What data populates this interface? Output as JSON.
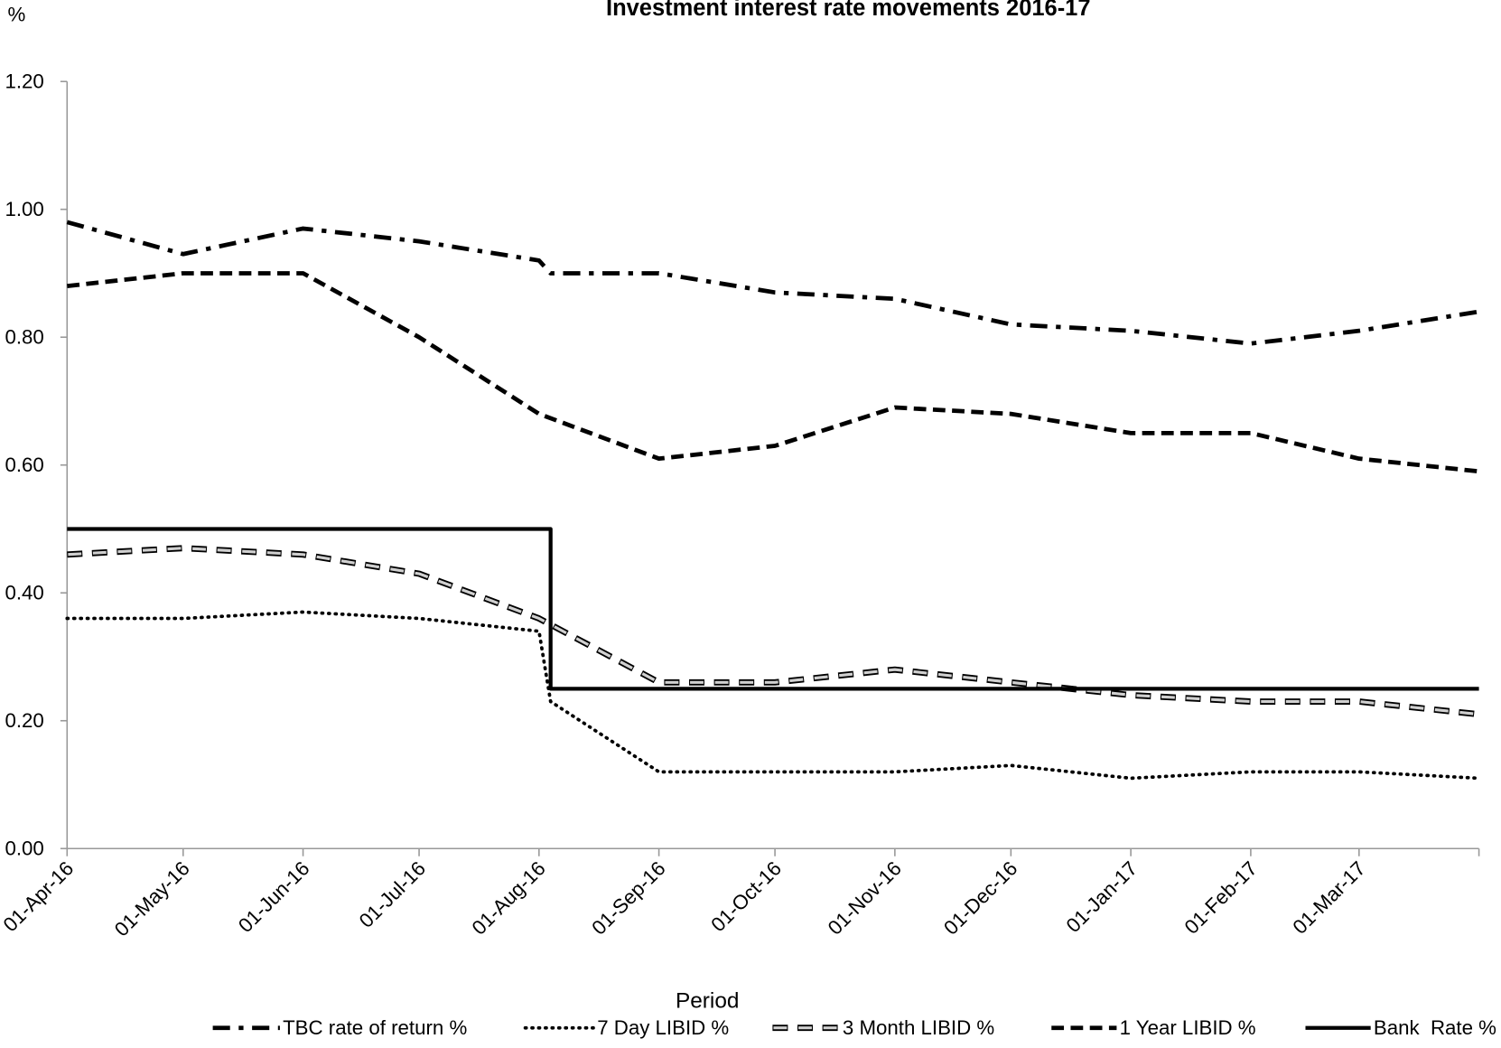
{
  "chart_data": {
    "type": "line",
    "title": "Investment interest rate movements 2016-17",
    "y_label": "%",
    "x_label": "Period",
    "xlim": [
      "2016-04-01",
      "2017-04-01"
    ],
    "xticks": [
      {
        "value": "2016-04-01",
        "label": "01-Apr-16"
      },
      {
        "value": "2016-05-01",
        "label": "01-May-16"
      },
      {
        "value": "2016-06-01",
        "label": "01-Jun-16"
      },
      {
        "value": "2016-07-01",
        "label": "01-Jul-16"
      },
      {
        "value": "2016-08-01",
        "label": "01-Aug-16"
      },
      {
        "value": "2016-09-01",
        "label": "01-Sep-16"
      },
      {
        "value": "2016-10-01",
        "label": "01-Oct-16"
      },
      {
        "value": "2016-11-01",
        "label": "01-Nov-16"
      },
      {
        "value": "2016-12-01",
        "label": "01-Dec-16"
      },
      {
        "value": "2017-01-01",
        "label": "01-Jan-17"
      },
      {
        "value": "2017-02-01",
        "label": "01-Feb-17"
      },
      {
        "value": "2017-03-01",
        "label": "01-Mar-17"
      }
    ],
    "ylim": [
      0,
      1.2
    ],
    "yticks": [
      {
        "value": 0,
        "label": "0.00"
      },
      {
        "value": 0.2,
        "label": "0.20"
      },
      {
        "value": 0.4,
        "label": "0.40"
      },
      {
        "value": 0.6,
        "label": "0.60"
      },
      {
        "value": 0.8,
        "label": "0.80"
      },
      {
        "value": 1,
        "label": "1.00"
      },
      {
        "value": 1.2,
        "label": "1.20"
      }
    ],
    "grid": false,
    "legend": "bottom",
    "series": [
      {
        "name": "TBC rate of return %",
        "color": "#000000",
        "style": "dash-dot",
        "x": [
          "2016-04-01",
          "2016-05-01",
          "2016-06-01",
          "2016-07-01",
          "2016-08-01",
          "2016-08-04",
          "2016-09-01",
          "2016-10-01",
          "2016-11-01",
          "2016-12-01",
          "2017-01-01",
          "2017-02-01",
          "2017-03-01",
          "2017-04-01"
        ],
        "values": [
          0.98,
          0.93,
          0.97,
          0.95,
          0.92,
          0.9,
          0.9,
          0.87,
          0.86,
          0.82,
          0.81,
          0.79,
          0.81,
          0.84
        ]
      },
      {
        "name": "7 Day LIBID %",
        "color": "#000000",
        "style": "dotted",
        "x": [
          "2016-04-01",
          "2016-05-01",
          "2016-06-01",
          "2016-07-01",
          "2016-08-01",
          "2016-08-04",
          "2016-09-01",
          "2016-10-01",
          "2016-11-01",
          "2016-12-01",
          "2017-01-01",
          "2017-02-01",
          "2017-03-01",
          "2017-04-01"
        ],
        "values": [
          0.36,
          0.36,
          0.37,
          0.36,
          0.34,
          0.23,
          0.12,
          0.12,
          0.12,
          0.13,
          0.11,
          0.12,
          0.12,
          0.11
        ]
      },
      {
        "name": "3 Month LIBID %",
        "color": "#d0d0d0",
        "style": "outlined-dash",
        "x": [
          "2016-04-01",
          "2016-05-01",
          "2016-06-01",
          "2016-07-01",
          "2016-08-01",
          "2016-09-01",
          "2016-10-01",
          "2016-11-01",
          "2016-12-01",
          "2017-01-01",
          "2017-02-01",
          "2017-03-01",
          "2017-04-01"
        ],
        "values": [
          0.46,
          0.47,
          0.46,
          0.43,
          0.36,
          0.26,
          0.26,
          0.28,
          0.26,
          0.24,
          0.23,
          0.23,
          0.21
        ]
      },
      {
        "name": "1 Year LIBID %",
        "color": "#000000",
        "style": "dashed",
        "x": [
          "2016-04-01",
          "2016-05-01",
          "2016-06-01",
          "2016-07-01",
          "2016-08-01",
          "2016-09-01",
          "2016-10-01",
          "2016-11-01",
          "2016-12-01",
          "2017-01-01",
          "2017-02-01",
          "2017-03-01",
          "2017-04-01"
        ],
        "values": [
          0.88,
          0.9,
          0.9,
          0.8,
          0.68,
          0.61,
          0.63,
          0.69,
          0.68,
          0.65,
          0.65,
          0.61,
          0.59
        ]
      },
      {
        "name": "Bank  Rate %",
        "color": "#000000",
        "style": "solid",
        "x": [
          "2016-04-01",
          "2016-08-04",
          "2016-08-04",
          "2017-04-01"
        ],
        "values": [
          0.5,
          0.5,
          0.25,
          0.25
        ]
      }
    ]
  }
}
